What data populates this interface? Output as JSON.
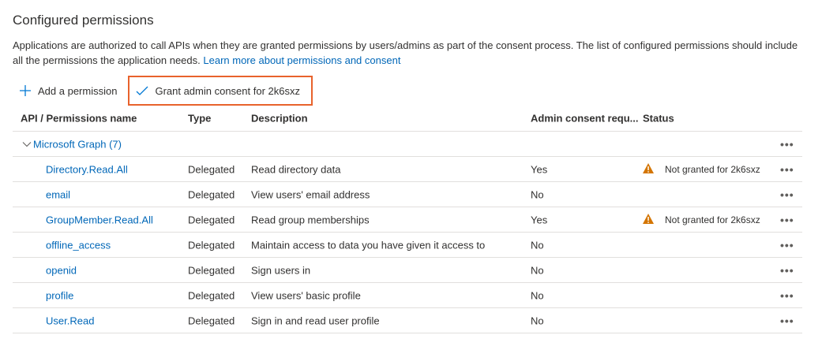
{
  "title": "Configured permissions",
  "intro": "Applications are authorized to call APIs when they are granted permissions by users/admins as part of the consent process. The list of configured permissions should include all the permissions the application needs.",
  "learn_more": "Learn more about permissions and consent",
  "toolbar": {
    "add": "Add a permission",
    "grant": "Grant admin consent for 2k6sxz"
  },
  "columns": [
    "API / Permissions name",
    "Type",
    "Description",
    "Admin consent requ...",
    "Status"
  ],
  "group": {
    "label": "Microsoft Graph (7)"
  },
  "more": "•••",
  "rows": [
    {
      "name": "Directory.Read.All",
      "type": "Delegated",
      "desc": "Read directory data",
      "admin": "Yes",
      "status": "Not granted for 2k6sxz"
    },
    {
      "name": "email",
      "type": "Delegated",
      "desc": "View users' email address",
      "admin": "No",
      "status": ""
    },
    {
      "name": "GroupMember.Read.All",
      "type": "Delegated",
      "desc": "Read group memberships",
      "admin": "Yes",
      "status": "Not granted for 2k6sxz"
    },
    {
      "name": "offline_access",
      "type": "Delegated",
      "desc": "Maintain access to data you have given it access to",
      "admin": "No",
      "status": ""
    },
    {
      "name": "openid",
      "type": "Delegated",
      "desc": "Sign users in",
      "admin": "No",
      "status": ""
    },
    {
      "name": "profile",
      "type": "Delegated",
      "desc": "View users' basic profile",
      "admin": "No",
      "status": ""
    },
    {
      "name": "User.Read",
      "type": "Delegated",
      "desc": "Sign in and read user profile",
      "admin": "No",
      "status": ""
    }
  ],
  "colors": {
    "link": "#0067b8",
    "highlight": "#e8622c",
    "warning": "#d47500"
  }
}
